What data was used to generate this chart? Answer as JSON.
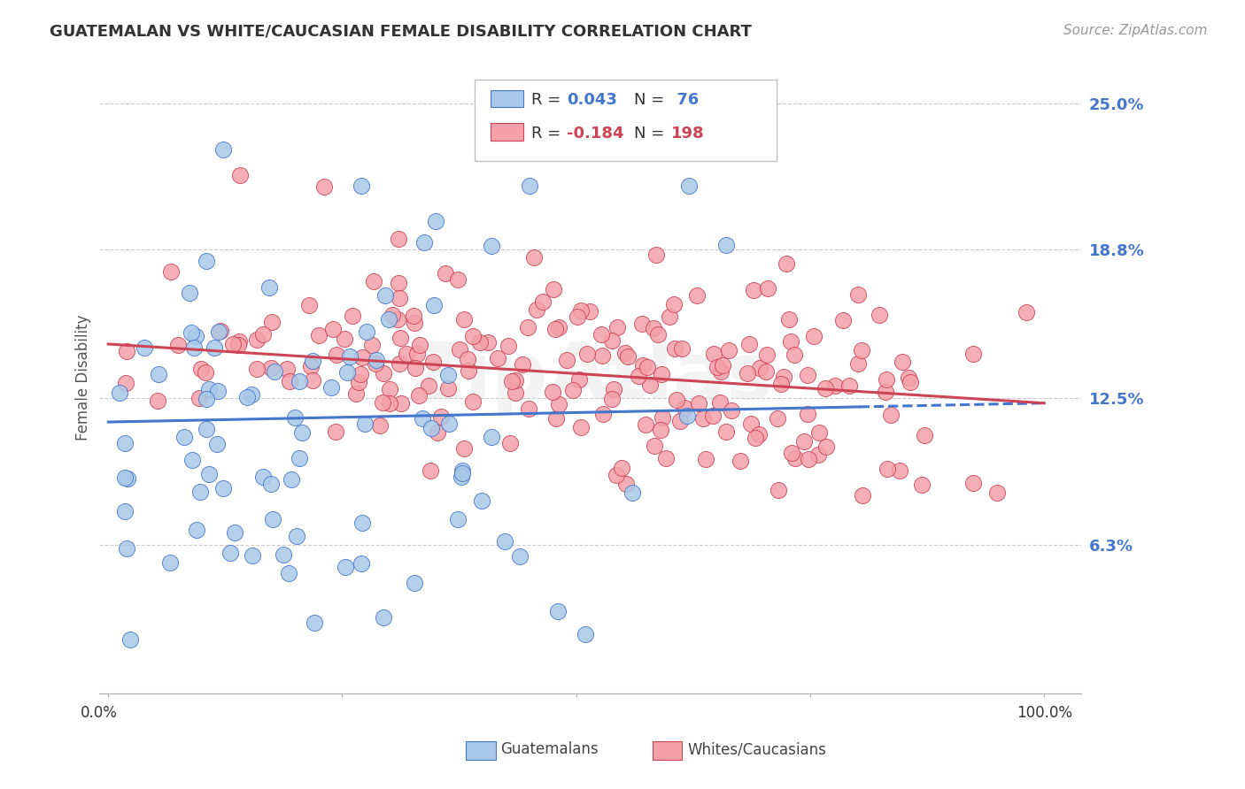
{
  "title": "GUATEMALAN VS WHITE/CAUCASIAN FEMALE DISABILITY CORRELATION CHART",
  "source": "Source: ZipAtlas.com",
  "ylabel": "Female Disability",
  "yticks": [
    0.063,
    0.125,
    0.188,
    0.25
  ],
  "ytick_labels": [
    "6.3%",
    "12.5%",
    "18.8%",
    "25.0%"
  ],
  "blue_color": "#A8C8E8",
  "pink_color": "#F4A0A8",
  "trend_blue": "#4477CC",
  "trend_pink": "#CC4455",
  "background": "#FFFFFF",
  "grid_color": "#CCCCCC",
  "watermark": "ZipAtlas",
  "legend_r1_label": "R = ",
  "legend_r1_val": "0.043",
  "legend_n1_label": "N = ",
  "legend_n1_val": " 76",
  "legend_r2_label": "R = ",
  "legend_r2_val": "-0.184",
  "legend_n2_label": "N = ",
  "legend_n2_val": "198",
  "bottom_label1": "Guatemalans",
  "bottom_label2": "Whites/Caucasians"
}
